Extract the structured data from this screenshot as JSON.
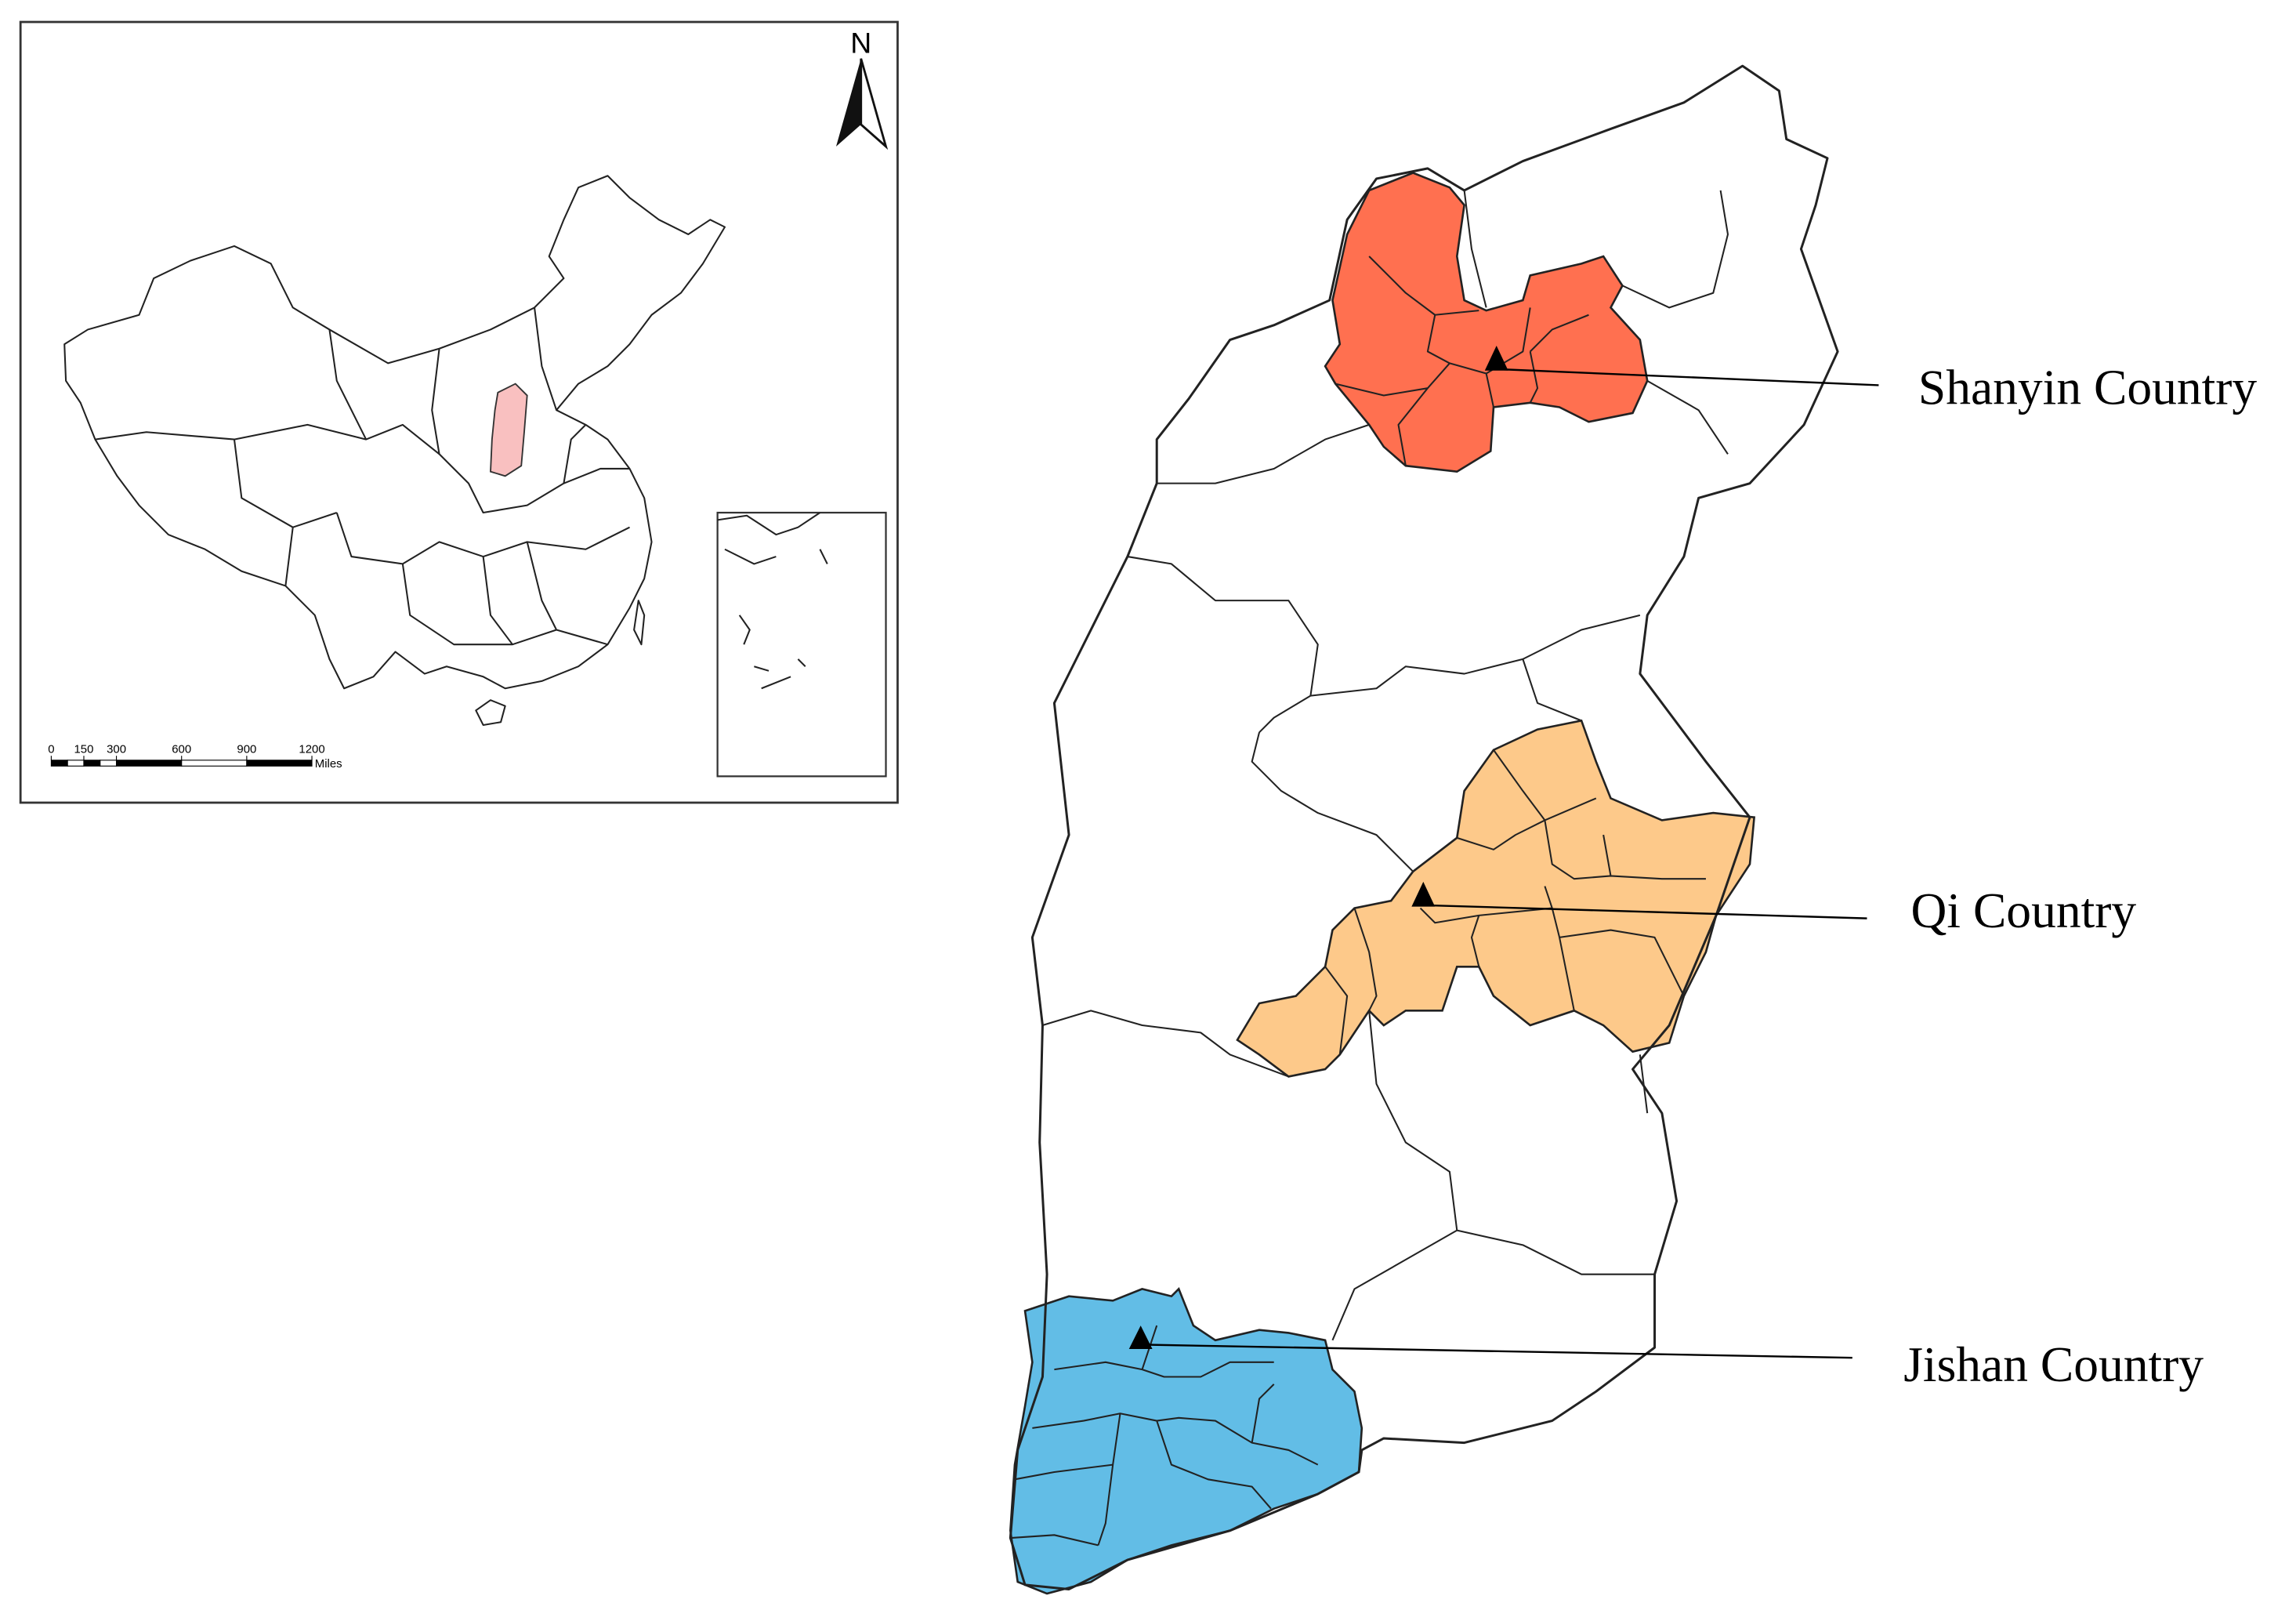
{
  "inset": {
    "north": "N",
    "scale": {
      "ticks": [
        0,
        150,
        300,
        600,
        900,
        1200
      ],
      "unit": "Miles"
    }
  },
  "labels": [
    "Shanyin Country",
    "Qi Country",
    "Jishan Country"
  ]
}
